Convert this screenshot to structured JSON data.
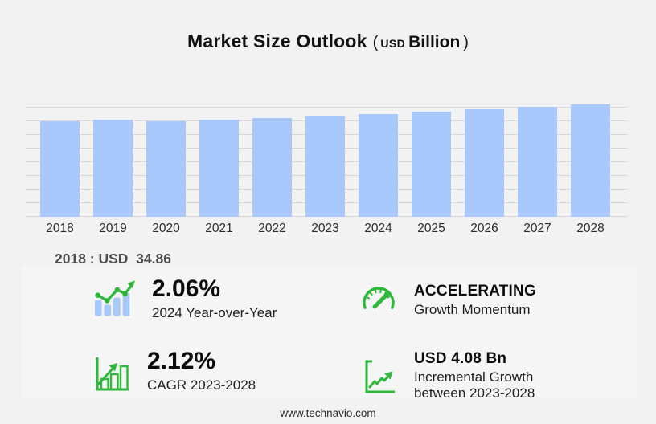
{
  "title": {
    "main": "Market Size Outlook",
    "open_paren": "(",
    "currency": "USD",
    "unit": "Billion",
    "close_paren": ")"
  },
  "chart_data": {
    "type": "bar",
    "title": "Market Size Outlook (USD Billion)",
    "categories": [
      "2018",
      "2019",
      "2020",
      "2021",
      "2022",
      "2023",
      "2024",
      "2025",
      "2026",
      "2027",
      "2028"
    ],
    "values": [
      34.86,
      35.5,
      35.0,
      35.4,
      36.0,
      36.9,
      37.65,
      38.4,
      39.25,
      40.1,
      40.97
    ],
    "xlabel": "",
    "ylabel": "",
    "ylim": [
      0,
      41.5
    ],
    "grid": true,
    "gridline_interval": 5,
    "y_axis_labels_visible": false,
    "legend": "none",
    "bar_color": "#a9c8fb",
    "annotation": "2018 : USD  34.86"
  },
  "annotation": {
    "text": "2018 : USD  34.86"
  },
  "stats": {
    "yoy": {
      "icon": "bar-chart-trend-icon",
      "value": "2.06%",
      "label": "2024 Year-over-Year"
    },
    "momentum": {
      "icon": "speedometer-icon",
      "value": "ACCELERATING",
      "label": "Growth Momentum"
    },
    "cagr": {
      "icon": "growth-chart-arrow-icon",
      "value": "2.12%",
      "label": "CAGR 2023-2028"
    },
    "incremental": {
      "icon": "axes-growth-arrow-icon",
      "value": "USD 4.08 Bn",
      "label_line1": "Incremental Growth",
      "label_line2": "between 2023-2028"
    }
  },
  "footer": {
    "url": "www.technavio.com"
  },
  "colors": {
    "background": "#f2f2f3",
    "panel": "#f5f5f6",
    "bar": "#a9c8fb",
    "gridline": "#d8d8da",
    "accent_green": "#2db83a",
    "text_dark": "#111111",
    "text_gray": "#4d4d4d"
  }
}
